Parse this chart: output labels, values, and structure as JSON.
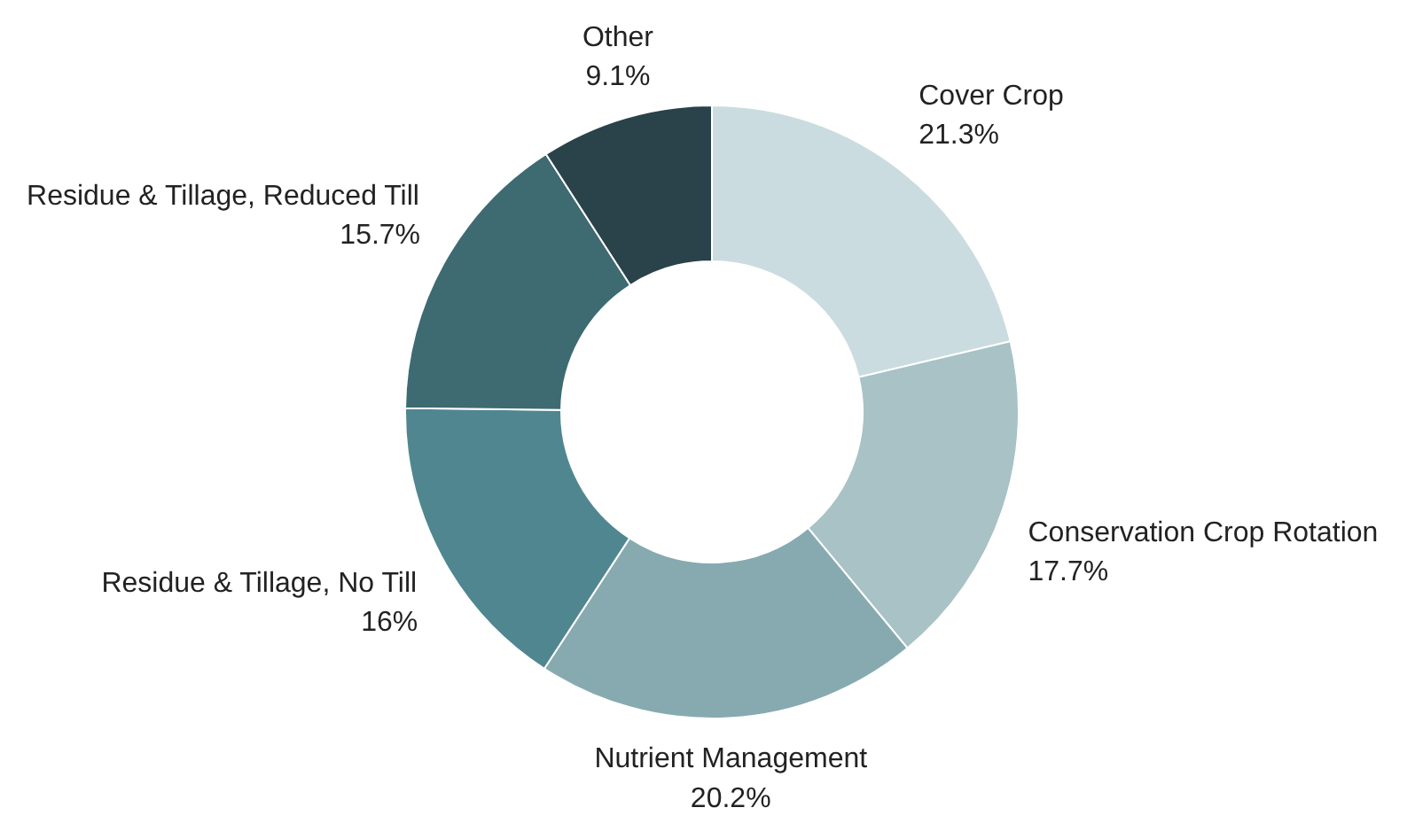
{
  "chart_data": {
    "type": "donut",
    "categories": [
      "Cover Crop",
      "Conservation Crop Rotation",
      "Nutrient Management",
      "Residue & Tillage, No Till",
      "Residue & Tillage, Reduced Till",
      "Other"
    ],
    "values": [
      21.3,
      17.7,
      20.2,
      16,
      15.7,
      9.1
    ],
    "value_labels": [
      "21.3%",
      "17.7%",
      "20.2%",
      "16%",
      "15.7%",
      "9.1%"
    ],
    "colors": [
      "#cadcdf",
      "#a8c2c6",
      "#86aab0",
      "#508690",
      "#3e6a72",
      "#2a4249"
    ]
  }
}
